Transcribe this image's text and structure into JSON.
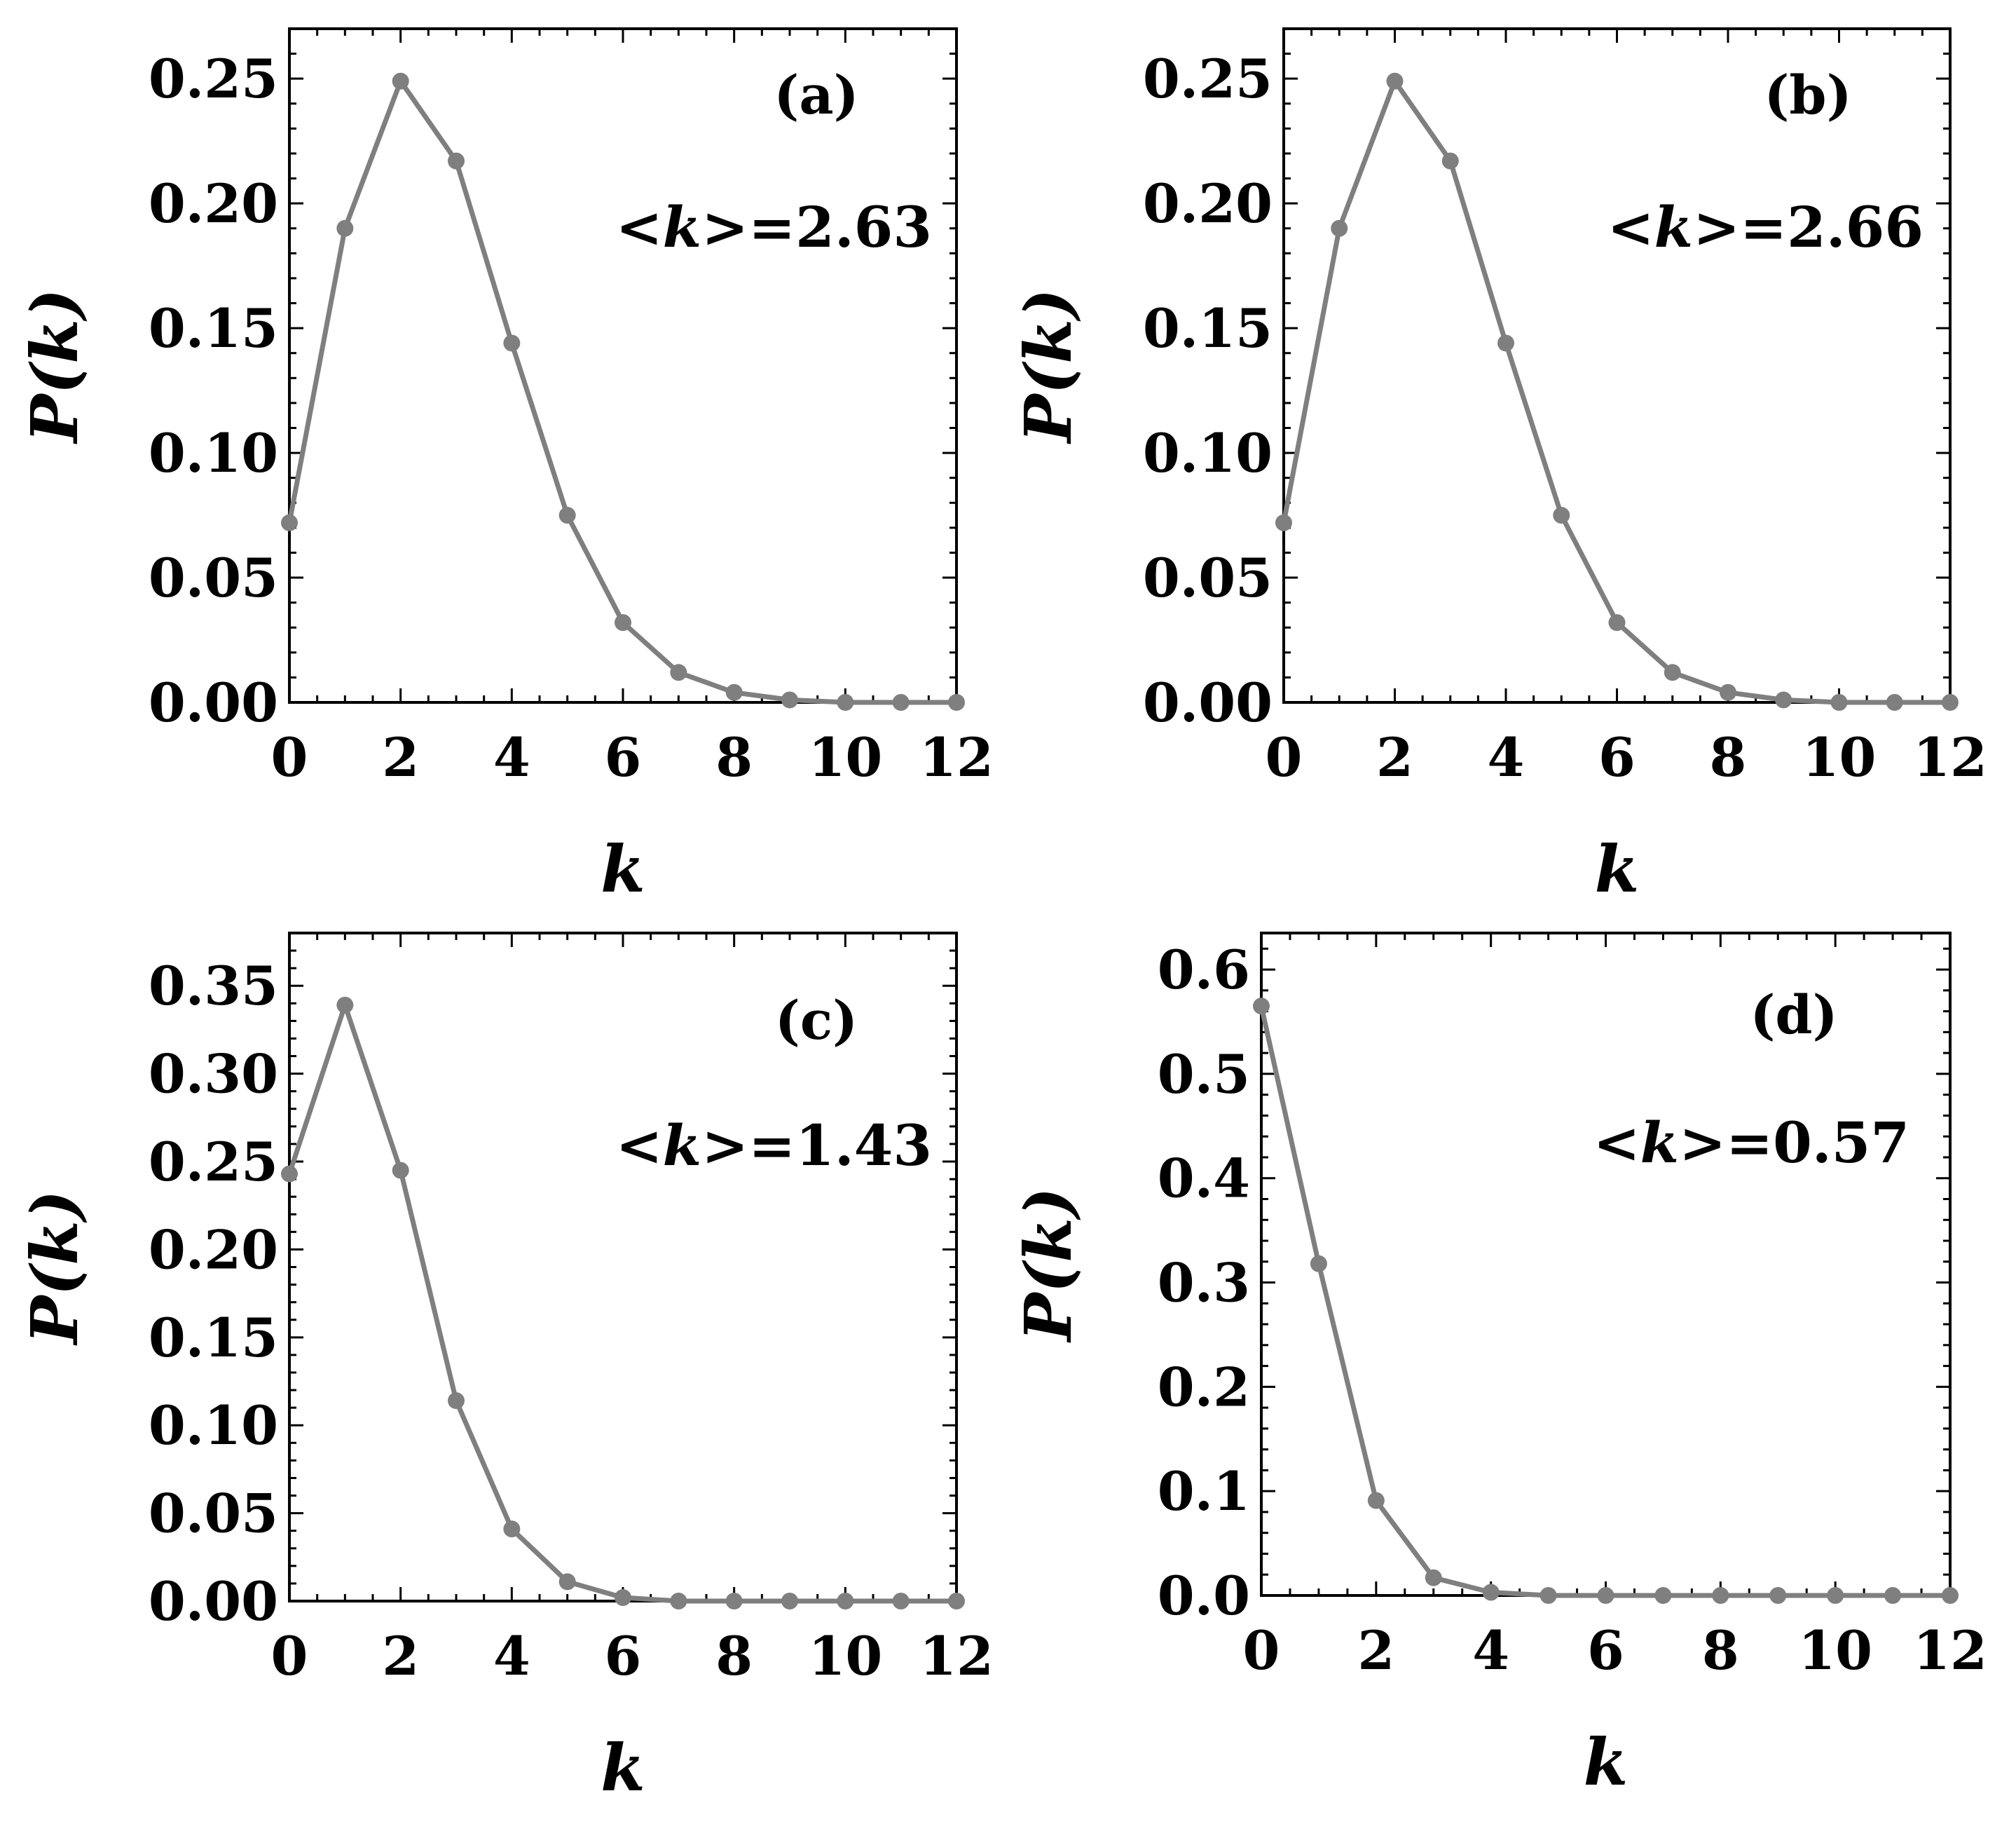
{
  "figure": {
    "panels": [
      {
        "tag": "(a)",
        "mean_prefix": "<",
        "mean_var": "k",
        "mean_suffix": ">=2.63"
      },
      {
        "tag": "(b)",
        "mean_prefix": "<",
        "mean_var": "k",
        "mean_suffix": ">=2.66"
      },
      {
        "tag": "(c)",
        "mean_prefix": "<",
        "mean_var": "k",
        "mean_suffix": ">=1.43"
      },
      {
        "tag": "(d)",
        "mean_prefix": "<",
        "mean_var": "k",
        "mean_suffix": ">=0.57"
      }
    ]
  },
  "colors": {
    "series": "#7f7f7f",
    "axes": "#000000",
    "background": "#ffffff"
  },
  "chart_data": [
    {
      "type": "line",
      "panel": "(a)",
      "annotation": "<k>=2.63",
      "xlabel": "k",
      "ylabel": "P(k)",
      "xlim": [
        0,
        12
      ],
      "ylim": [
        0,
        0.27
      ],
      "xticks": [
        0,
        2,
        4,
        6,
        8,
        10,
        12
      ],
      "xtick_labels": [
        "0",
        "2",
        "4",
        "6",
        "8",
        "10",
        "12"
      ],
      "yticks": [
        0,
        0.05,
        0.1,
        0.15,
        0.2,
        0.25
      ],
      "ytick_labels": [
        "0.00",
        "0.05",
        "0.10",
        "0.15",
        "0.20",
        "0.25"
      ],
      "x": [
        0,
        1,
        2,
        3,
        4,
        5,
        6,
        7,
        8,
        9,
        10,
        11,
        12
      ],
      "y": [
        0.072,
        0.19,
        0.249,
        0.217,
        0.144,
        0.075,
        0.032,
        0.012,
        0.004,
        0.001,
        0.0,
        0.0,
        0.0
      ],
      "markers": true,
      "grid": false
    },
    {
      "type": "line",
      "panel": "(b)",
      "annotation": "<k>=2.66",
      "xlabel": "k",
      "ylabel": "P(k)",
      "xlim": [
        0,
        12
      ],
      "ylim": [
        0,
        0.27
      ],
      "xticks": [
        0,
        2,
        4,
        6,
        8,
        10,
        12
      ],
      "xtick_labels": [
        "0",
        "2",
        "4",
        "6",
        "8",
        "10",
        "12"
      ],
      "yticks": [
        0,
        0.05,
        0.1,
        0.15,
        0.2,
        0.25
      ],
      "ytick_labels": [
        "0.00",
        "0.05",
        "0.10",
        "0.15",
        "0.20",
        "0.25"
      ],
      "x": [
        0,
        1,
        2,
        3,
        4,
        5,
        6,
        7,
        8,
        9,
        10,
        11,
        12
      ],
      "y": [
        0.072,
        0.19,
        0.249,
        0.217,
        0.144,
        0.075,
        0.032,
        0.012,
        0.004,
        0.001,
        0.0,
        0.0,
        0.0
      ],
      "markers": true,
      "grid": false
    },
    {
      "type": "line",
      "panel": "(c)",
      "annotation": "<k>=1.43",
      "xlabel": "k",
      "ylabel": "P(k)",
      "xlim": [
        0,
        12
      ],
      "ylim": [
        0,
        0.38
      ],
      "xticks": [
        0,
        2,
        4,
        6,
        8,
        10,
        12
      ],
      "xtick_labels": [
        "0",
        "2",
        "4",
        "6",
        "8",
        "10",
        "12"
      ],
      "yticks": [
        0,
        0.05,
        0.1,
        0.15,
        0.2,
        0.25,
        0.3,
        0.35
      ],
      "ytick_labels": [
        "0.00",
        "0.05",
        "0.10",
        "0.15",
        "0.20",
        "0.25",
        "0.30",
        "0.35"
      ],
      "x": [
        0,
        1,
        2,
        3,
        4,
        5,
        6,
        7,
        8,
        9,
        10,
        11,
        12
      ],
      "y": [
        0.243,
        0.339,
        0.245,
        0.114,
        0.041,
        0.011,
        0.002,
        0.0,
        0.0,
        0.0,
        0.0,
        0.0,
        0.0
      ],
      "markers": true,
      "grid": false
    },
    {
      "type": "line",
      "panel": "(d)",
      "annotation": "<k>=0.57",
      "xlabel": "k",
      "ylabel": "P(k)",
      "xlim": [
        0,
        12
      ],
      "ylim": [
        0,
        0.635
      ],
      "xticks": [
        0,
        2,
        4,
        6,
        8,
        10,
        12
      ],
      "xtick_labels": [
        "0",
        "2",
        "4",
        "6",
        "8",
        "10",
        "12"
      ],
      "yticks": [
        0,
        0.1,
        0.2,
        0.3,
        0.4,
        0.5,
        0.6
      ],
      "ytick_labels": [
        "0.0",
        "0.1",
        "0.2",
        "0.3",
        "0.4",
        "0.5",
        "0.6"
      ],
      "x": [
        0,
        1,
        2,
        3,
        4,
        5,
        6,
        7,
        8,
        9,
        10,
        11,
        12
      ],
      "y": [
        0.565,
        0.318,
        0.091,
        0.017,
        0.003,
        0.0,
        0.0,
        0.0,
        0.0,
        0.0,
        0.0,
        0.0,
        0.0
      ],
      "markers": true,
      "grid": false
    }
  ]
}
